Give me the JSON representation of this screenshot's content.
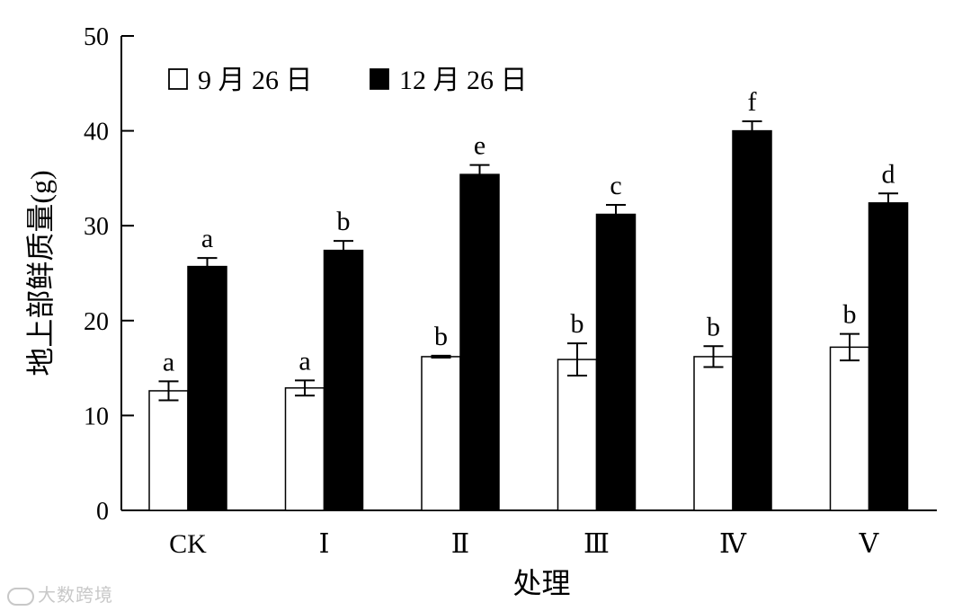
{
  "chart_data": {
    "type": "bar",
    "categories": [
      "CK",
      "Ⅰ",
      "Ⅱ",
      "Ⅲ",
      "Ⅳ",
      "Ⅴ"
    ],
    "series": [
      {
        "name": "9 月 26 日",
        "color": "#ffffff",
        "values": [
          12.6,
          12.9,
          16.2,
          15.9,
          16.2,
          17.2
        ],
        "errors": [
          1.0,
          0.8,
          0.1,
          1.7,
          1.1,
          1.4
        ],
        "letters": [
          "a",
          "a",
          "b",
          "b",
          "b",
          "b"
        ]
      },
      {
        "name": "12 月 26 日",
        "color": "#000000",
        "values": [
          25.7,
          27.4,
          35.4,
          31.2,
          40.0,
          32.4
        ],
        "errors": [
          0.9,
          1.0,
          1.0,
          1.0,
          1.0,
          1.0
        ],
        "letters": [
          "a",
          "b",
          "e",
          "c",
          "f",
          "d"
        ]
      }
    ],
    "xlabel": "处理",
    "ylabel": "地上部鲜质量(g)",
    "ylim": [
      0,
      50
    ],
    "yticks": [
      0,
      10,
      20,
      30,
      40,
      50
    ],
    "grid": false,
    "legend_position": "top-left"
  },
  "watermark": {
    "text": "大数跨境"
  }
}
